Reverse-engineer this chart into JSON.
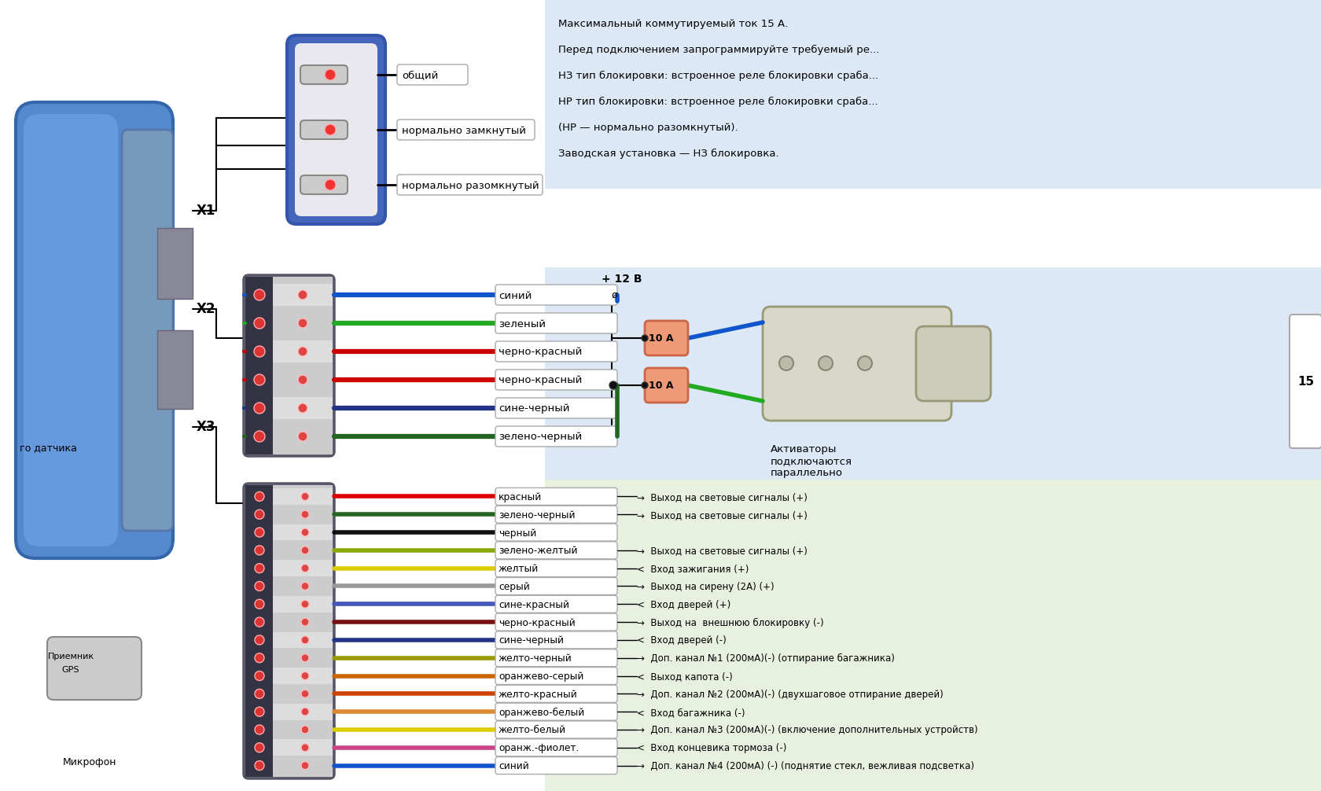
{
  "bg_color": "#ffffff",
  "light_blue_bg": "#dce8f5",
  "light_green_bg": "#e8f0e0",
  "info_lines": [
    "Максимальный коммутируемый ток 15 А.",
    "Перед подключением запрограммируйте требуемый ре...",
    "НЗ тип блокировки: встроенное реле блокировки сраба...",
    "НР тип блокировки: встроенное реле блокировки сраба...",
    "(НР — нормально разомкнутый).",
    "Заводская установка — НЗ блокировка."
  ],
  "relay_pins": [
    "общий",
    "нормально замкнутый",
    "нормально разомкнутый"
  ],
  "x2_labels": [
    "синий",
    "зеленый",
    "черно-красный",
    "черно-красный",
    "сине-черный",
    "зелено-черный"
  ],
  "x2_colors": [
    "#1155cc",
    "#22aa22",
    "#cc0000",
    "#cc0000",
    "#223388",
    "#226622"
  ],
  "x3_labels": [
    "красный",
    "зелено-черный",
    "черный",
    "зелено-желтый",
    "желтый",
    "серый",
    "сине-красный",
    "черно-красный",
    "сине-черный",
    "желто-черный",
    "оранжево-серый",
    "желто-красный",
    "оранжево-белый",
    "желто-белый",
    "оранж.-фиолет.",
    "синий"
  ],
  "x3_colors": [
    "#dd0000",
    "#226622",
    "#111111",
    "#88aa00",
    "#ddcc00",
    "#999999",
    "#4455bb",
    "#771111",
    "#223388",
    "#999900",
    "#cc6600",
    "#cc4400",
    "#dd8833",
    "#ddcc00",
    "#cc4488",
    "#1155cc"
  ],
  "x3_wire_colors_stripe": [
    "#dd0000",
    "#226622",
    "#111111",
    "#88aa00",
    "#ddcc00",
    "#999999",
    "#cc4455",
    "#cc0000",
    "#1155cc",
    "#ddcc00",
    "#cc6600",
    "#cc0000",
    "#dd8833",
    "#ddcc00",
    "#cc4488",
    "#1155cc"
  ],
  "x3_descs": [
    "→  Выход на световые сигналы (+)",
    "→  Выход на световые сигналы (+)",
    "",
    "→  Выход на световые сигналы (+)",
    "<  Вход зажигания (+)",
    "→  Выход на сирену (2А) (+)",
    "<  Вход дверей (+)",
    "→  Выход на  внешнюю блокировку (-)",
    "<  Вход дверей (-)",
    "→  Доп. канал №1 (200мА)(-) (отпирание багажника)",
    "<  Выход капота (-)",
    "→  Доп. канал №2 (200мА)(-) (двухшаговое отпирание дверей)",
    "<  Вход багажника (-)",
    "→  Доп. канал №3 (200мА)(-) (включение дополнительных устройств)",
    "<  Вход концевика тормоза (-)",
    "→  Доп. канал №4 (200мА) (-) (поднятие стекл, вежливая подсветка)"
  ],
  "x3_has_desc": [
    true,
    true,
    false,
    true,
    true,
    true,
    true,
    true,
    true,
    true,
    true,
    true,
    true,
    true,
    true,
    true
  ],
  "activator_text": "Активаторы\nподключаются\nпараллельно",
  "plus12v": "+ 12 В",
  "fuses": [
    "10 А",
    "10 А"
  ]
}
